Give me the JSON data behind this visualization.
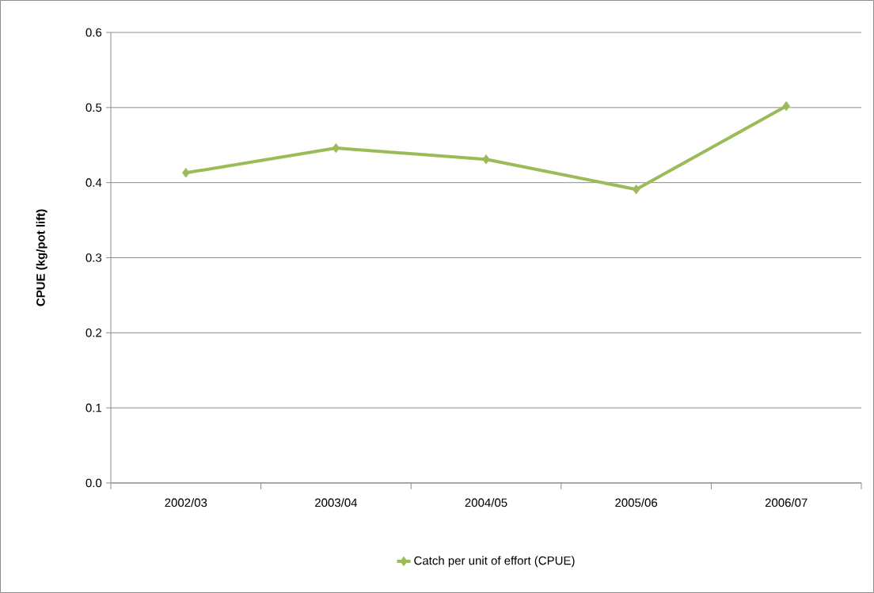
{
  "chart_data": {
    "type": "line",
    "ylabel": "CPUE (kg/pot lift)",
    "categories": [
      "2002/03",
      "2003/04",
      "2004/05",
      "2005/06",
      "2006/07"
    ],
    "series": [
      {
        "name": "Catch per unit of effort (CPUE)",
        "color": "#9bbb59",
        "values": [
          0.413,
          0.446,
          0.431,
          0.391,
          0.502
        ]
      }
    ],
    "ylim": [
      0,
      0.6
    ],
    "yticks": [
      {
        "value": 0,
        "label": "0.0"
      },
      0.1,
      0.2,
      0.3,
      0.4,
      0.5,
      0.6
    ],
    "grid": "y",
    "legend": "bottom",
    "marker": "diamond",
    "line_style": "solid"
  }
}
